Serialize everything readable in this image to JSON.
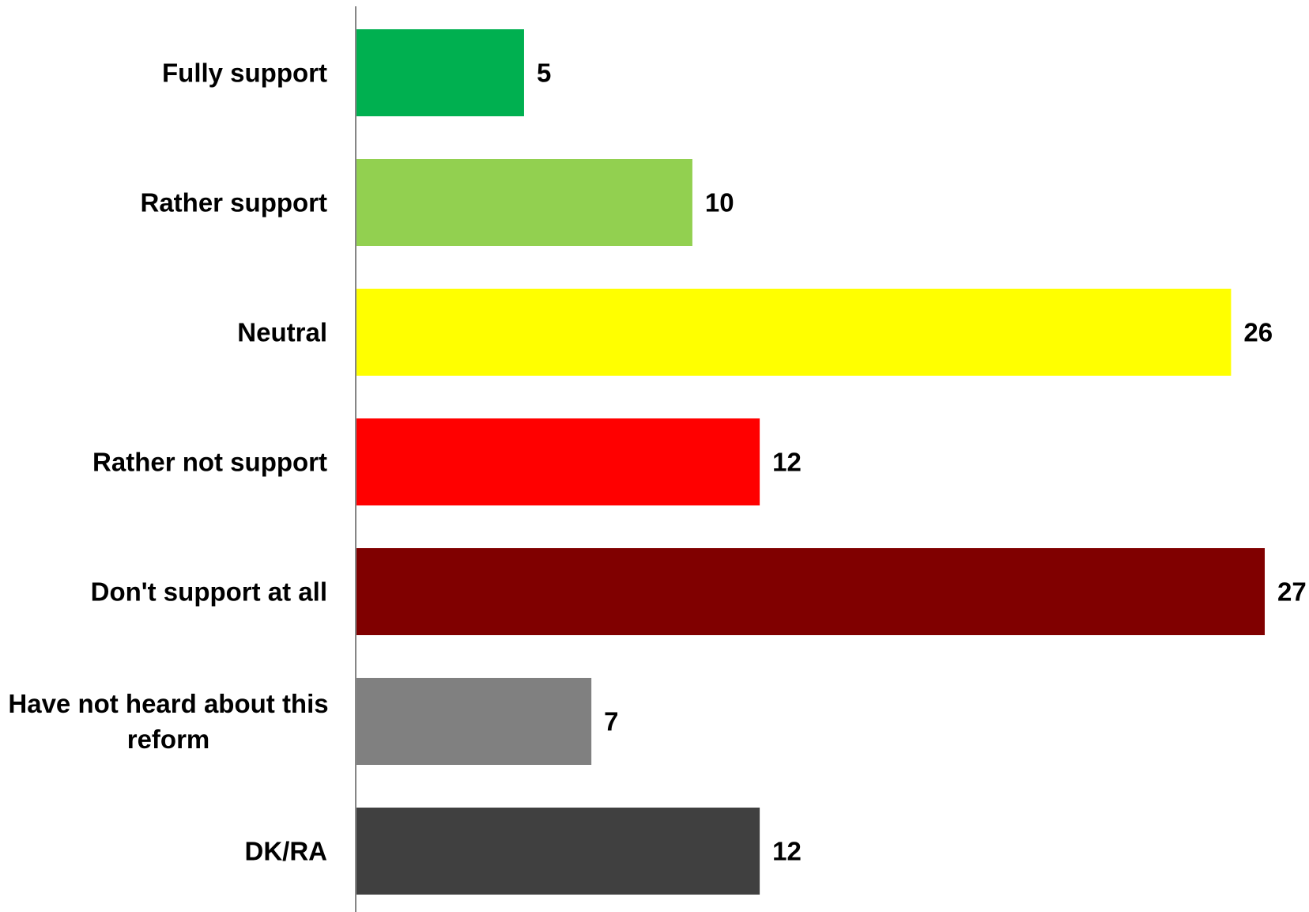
{
  "chart_data": {
    "type": "bar",
    "orientation": "horizontal",
    "categories": [
      [
        "Fully support"
      ],
      [
        "Rather support"
      ],
      [
        "Neutral"
      ],
      [
        "Rather not support"
      ],
      [
        "Don't support at all"
      ],
      [
        "Have not heard about this",
        "reform"
      ],
      [
        "DK/RA"
      ]
    ],
    "values": [
      5,
      10,
      26,
      12,
      27,
      7,
      12
    ],
    "colors": [
      "#00B050",
      "#92D050",
      "#FFFF00",
      "#FF0000",
      "#800000",
      "#808080",
      "#404040"
    ],
    "value_labels": [
      "5",
      "10",
      "26",
      "12",
      "27",
      "7",
      "12"
    ],
    "title": "",
    "xlabel": "",
    "ylabel": "",
    "xlim": [
      0,
      27
    ],
    "grid": false,
    "legend": "none",
    "data_labels": "outside-end"
  }
}
